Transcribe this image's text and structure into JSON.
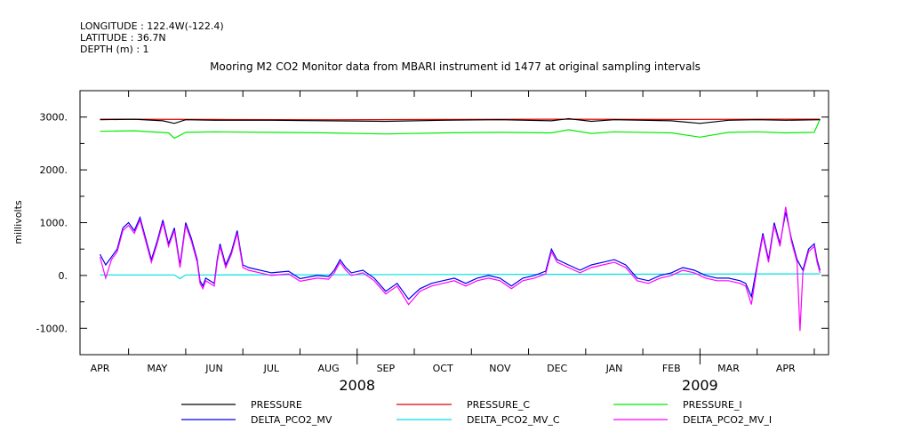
{
  "header": {
    "longitude": "LONGITUDE : 122.4W(-122.4)",
    "latitude": "LATITUDE : 36.7N",
    "depth": "DEPTH (m) : 1"
  },
  "chart_data": {
    "type": "line",
    "title": "Mooring M2 CO2 Monitor data from MBARI instrument id 1477 at original sampling intervals",
    "ylabel": "millivolts",
    "ylim": [
      -1500,
      3500
    ],
    "yticks": [
      {
        "value": 3000,
        "label": "3000."
      },
      {
        "value": 2000,
        "label": "2000."
      },
      {
        "value": 1000,
        "label": "1000."
      },
      {
        "value": 0,
        "label": "0."
      },
      {
        "value": -1000,
        "label": "-1000."
      }
    ],
    "x_months": [
      "APR",
      "MAY",
      "JUN",
      "JUL",
      "AUG",
      "SEP",
      "OCT",
      "NOV",
      "DEC",
      "JAN",
      "FEB",
      "MAR",
      "APR"
    ],
    "x_years": [
      {
        "label": "2008",
        "after_month_index": 4
      },
      {
        "label": "2009",
        "after_month_index": 10
      }
    ],
    "x_unit": "months since 2008-04-01",
    "xlim": [
      -0.35,
      12.75
    ],
    "grid": false,
    "legend_position": "bottom",
    "series": [
      {
        "name": "PRESSURE",
        "color": "#000000",
        "points": [
          [
            0,
            2950
          ],
          [
            0.6,
            2960
          ],
          [
            1.1,
            2930
          ],
          [
            1.3,
            2880
          ],
          [
            1.5,
            2950
          ],
          [
            2,
            2940
          ],
          [
            3,
            2940
          ],
          [
            4,
            2930
          ],
          [
            5,
            2920
          ],
          [
            6,
            2940
          ],
          [
            7,
            2950
          ],
          [
            7.9,
            2930
          ],
          [
            8.2,
            2970
          ],
          [
            8.6,
            2920
          ],
          [
            9,
            2950
          ],
          [
            10,
            2930
          ],
          [
            10.5,
            2880
          ],
          [
            11,
            2940
          ],
          [
            11.5,
            2950
          ],
          [
            12,
            2940
          ],
          [
            12.6,
            2950
          ]
        ]
      },
      {
        "name": "PRESSURE_C",
        "color": "#e00000",
        "points": [
          [
            0,
            2960
          ],
          [
            2,
            2955
          ],
          [
            4,
            2950
          ],
          [
            6,
            2955
          ],
          [
            8,
            2960
          ],
          [
            10,
            2955
          ],
          [
            12,
            2960
          ],
          [
            12.6,
            2960
          ]
        ]
      },
      {
        "name": "PRESSURE_I",
        "color": "#00ee00",
        "points": [
          [
            0,
            2730
          ],
          [
            0.6,
            2740
          ],
          [
            1.2,
            2700
          ],
          [
            1.3,
            2600
          ],
          [
            1.5,
            2710
          ],
          [
            2,
            2720
          ],
          [
            3,
            2710
          ],
          [
            4,
            2700
          ],
          [
            5,
            2680
          ],
          [
            6,
            2700
          ],
          [
            7,
            2710
          ],
          [
            7.9,
            2700
          ],
          [
            8.2,
            2760
          ],
          [
            8.6,
            2690
          ],
          [
            9,
            2720
          ],
          [
            10,
            2700
          ],
          [
            10.5,
            2620
          ],
          [
            11,
            2710
          ],
          [
            11.5,
            2720
          ],
          [
            12,
            2700
          ],
          [
            12.5,
            2710
          ],
          [
            12.6,
            2960
          ]
        ]
      },
      {
        "name": "DELTA_PCO2_MV",
        "color": "#0000ee",
        "points": [
          [
            0,
            400
          ],
          [
            0.1,
            200
          ],
          [
            0.2,
            350
          ],
          [
            0.3,
            500
          ],
          [
            0.4,
            900
          ],
          [
            0.5,
            1000
          ],
          [
            0.6,
            850
          ],
          [
            0.7,
            1100
          ],
          [
            0.8,
            700
          ],
          [
            0.9,
            300
          ],
          [
            1,
            650
          ],
          [
            1.1,
            1050
          ],
          [
            1.2,
            600
          ],
          [
            1.3,
            900
          ],
          [
            1.4,
            200
          ],
          [
            1.5,
            1000
          ],
          [
            1.6,
            700
          ],
          [
            1.7,
            300
          ],
          [
            1.75,
            -100
          ],
          [
            1.8,
            -200
          ],
          [
            1.85,
            -50
          ],
          [
            2,
            -150
          ],
          [
            2.05,
            300
          ],
          [
            2.1,
            600
          ],
          [
            2.2,
            200
          ],
          [
            2.3,
            450
          ],
          [
            2.4,
            850
          ],
          [
            2.5,
            200
          ],
          [
            2.6,
            150
          ],
          [
            3,
            50
          ],
          [
            3.3,
            80
          ],
          [
            3.5,
            -60
          ],
          [
            3.8,
            0
          ],
          [
            4,
            -20
          ],
          [
            4.1,
            100
          ],
          [
            4.2,
            300
          ],
          [
            4.3,
            150
          ],
          [
            4.4,
            50
          ],
          [
            4.6,
            100
          ],
          [
            4.8,
            -50
          ],
          [
            5,
            -300
          ],
          [
            5.2,
            -150
          ],
          [
            5.4,
            -450
          ],
          [
            5.6,
            -250
          ],
          [
            5.8,
            -150
          ],
          [
            6,
            -100
          ],
          [
            6.2,
            -50
          ],
          [
            6.4,
            -150
          ],
          [
            6.6,
            -50
          ],
          [
            6.8,
            0
          ],
          [
            7,
            -50
          ],
          [
            7.2,
            -200
          ],
          [
            7.4,
            -50
          ],
          [
            7.6,
            0
          ],
          [
            7.8,
            80
          ],
          [
            7.9,
            500
          ],
          [
            8,
            300
          ],
          [
            8.2,
            200
          ],
          [
            8.4,
            100
          ],
          [
            8.6,
            200
          ],
          [
            8.8,
            250
          ],
          [
            9,
            300
          ],
          [
            9.2,
            200
          ],
          [
            9.4,
            -50
          ],
          [
            9.6,
            -100
          ],
          [
            9.8,
            0
          ],
          [
            10,
            50
          ],
          [
            10.2,
            150
          ],
          [
            10.4,
            100
          ],
          [
            10.6,
            0
          ],
          [
            10.8,
            -50
          ],
          [
            11,
            -50
          ],
          [
            11.2,
            -100
          ],
          [
            11.3,
            -150
          ],
          [
            11.4,
            -400
          ],
          [
            11.5,
            200
          ],
          [
            11.6,
            800
          ],
          [
            11.7,
            300
          ],
          [
            11.8,
            1000
          ],
          [
            11.9,
            600
          ],
          [
            12,
            1200
          ],
          [
            12.1,
            700
          ],
          [
            12.2,
            300
          ],
          [
            12.3,
            100
          ],
          [
            12.4,
            500
          ],
          [
            12.5,
            600
          ],
          [
            12.55,
            300
          ],
          [
            12.6,
            100
          ]
        ]
      },
      {
        "name": "DELTA_PCO2_MV_C",
        "color": "#00e0e0",
        "points": [
          [
            0,
            10
          ],
          [
            1.3,
            10
          ],
          [
            1.4,
            -60
          ],
          [
            1.5,
            10
          ],
          [
            2,
            10
          ],
          [
            12.6,
            30
          ]
        ]
      },
      {
        "name": "DELTA_PCO2_MV_I",
        "color": "#ff00ff",
        "points": [
          [
            0,
            350
          ],
          [
            0.1,
            -50
          ],
          [
            0.2,
            300
          ],
          [
            0.3,
            450
          ],
          [
            0.4,
            850
          ],
          [
            0.5,
            950
          ],
          [
            0.6,
            800
          ],
          [
            0.7,
            1050
          ],
          [
            0.8,
            650
          ],
          [
            0.9,
            250
          ],
          [
            1,
            600
          ],
          [
            1.1,
            1000
          ],
          [
            1.2,
            550
          ],
          [
            1.3,
            850
          ],
          [
            1.4,
            150
          ],
          [
            1.5,
            950
          ],
          [
            1.6,
            650
          ],
          [
            1.7,
            250
          ],
          [
            1.75,
            -150
          ],
          [
            1.8,
            -250
          ],
          [
            1.85,
            -100
          ],
          [
            2,
            -200
          ],
          [
            2.05,
            250
          ],
          [
            2.1,
            550
          ],
          [
            2.2,
            150
          ],
          [
            2.3,
            400
          ],
          [
            2.4,
            800
          ],
          [
            2.5,
            150
          ],
          [
            2.6,
            100
          ],
          [
            3,
            0
          ],
          [
            3.3,
            30
          ],
          [
            3.5,
            -110
          ],
          [
            3.8,
            -50
          ],
          [
            4,
            -70
          ],
          [
            4.1,
            50
          ],
          [
            4.2,
            250
          ],
          [
            4.3,
            100
          ],
          [
            4.4,
            0
          ],
          [
            4.6,
            50
          ],
          [
            4.8,
            -100
          ],
          [
            5,
            -350
          ],
          [
            5.2,
            -200
          ],
          [
            5.4,
            -550
          ],
          [
            5.6,
            -300
          ],
          [
            5.8,
            -200
          ],
          [
            6,
            -150
          ],
          [
            6.2,
            -100
          ],
          [
            6.4,
            -200
          ],
          [
            6.6,
            -100
          ],
          [
            6.8,
            -50
          ],
          [
            7,
            -100
          ],
          [
            7.2,
            -250
          ],
          [
            7.4,
            -100
          ],
          [
            7.6,
            -50
          ],
          [
            7.8,
            30
          ],
          [
            7.9,
            450
          ],
          [
            8,
            250
          ],
          [
            8.2,
            150
          ],
          [
            8.4,
            50
          ],
          [
            8.6,
            150
          ],
          [
            8.8,
            200
          ],
          [
            9,
            250
          ],
          [
            9.2,
            150
          ],
          [
            9.4,
            -100
          ],
          [
            9.6,
            -150
          ],
          [
            9.8,
            -50
          ],
          [
            10,
            0
          ],
          [
            10.2,
            100
          ],
          [
            10.4,
            50
          ],
          [
            10.6,
            -50
          ],
          [
            10.8,
            -100
          ],
          [
            11,
            -100
          ],
          [
            11.2,
            -150
          ],
          [
            11.3,
            -200
          ],
          [
            11.4,
            -550
          ],
          [
            11.5,
            150
          ],
          [
            11.6,
            750
          ],
          [
            11.7,
            250
          ],
          [
            11.8,
            950
          ],
          [
            11.9,
            550
          ],
          [
            12,
            1300
          ],
          [
            12.1,
            650
          ],
          [
            12.2,
            250
          ],
          [
            12.25,
            -1050
          ],
          [
            12.3,
            50
          ],
          [
            12.4,
            450
          ],
          [
            12.5,
            550
          ],
          [
            12.55,
            250
          ],
          [
            12.6,
            50
          ]
        ]
      }
    ]
  }
}
